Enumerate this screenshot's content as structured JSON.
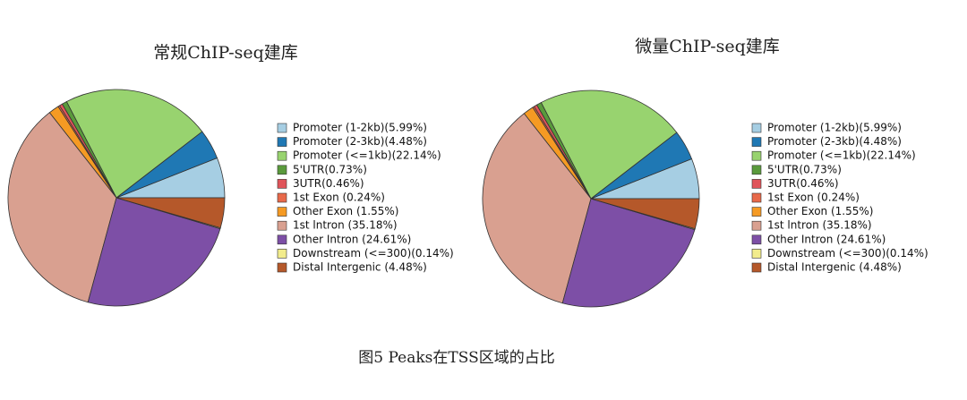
{
  "chart_data": [
    {
      "type": "pie",
      "title": "常规ChIP-seq建库",
      "categories": [
        "Promoter (1-2kb)(5.99%)",
        "Promoter (2-3kb)(4.48%)",
        "Promoter (<=1kb)(22.14%)",
        "5'UTR(0.73%)",
        "3UTR(0.46%)",
        "1st Exon (0.24%)",
        "Other Exon (1.55%)",
        "1st lntron (35.18%)",
        "Other Intron (24.61%)",
        "Downstream (<=300)(0.14%)",
        "Distal Intergenic (4.48%)"
      ],
      "values": [
        5.99,
        4.48,
        22.14,
        0.73,
        0.46,
        0.24,
        1.55,
        35.18,
        24.61,
        0.14,
        4.48
      ],
      "colors": [
        "#a6cee3",
        "#1f78b4",
        "#98d36f",
        "#5a9a3c",
        "#e0545a",
        "#e8694a",
        "#f59a23",
        "#d9a090",
        "#7d4fa6",
        "#f2ec8c",
        "#b5582a"
      ]
    },
    {
      "type": "pie",
      "title": "微量ChIP-seq建库",
      "categories": [
        "Promoter (1-2kb)(5.99%)",
        "Promoter (2-3kb)(4.48%)",
        "Promoter (<=1kb)(22.14%)",
        "5'UTR(0.73%)",
        "3UTR(0.46%)",
        "1st Exon (0.24%)",
        "Other Exon (1.55%)",
        "1st lntron (35.18%)",
        "Other Intron (24.61%)",
        "Downstream (<=300)(0.14%)",
        "Distal Intergenic (4.48%)"
      ],
      "values": [
        5.99,
        4.48,
        22.14,
        0.73,
        0.46,
        0.24,
        1.55,
        35.18,
        24.61,
        0.14,
        4.48
      ],
      "colors": [
        "#a6cee3",
        "#1f78b4",
        "#98d36f",
        "#5a9a3c",
        "#e0545a",
        "#e8694a",
        "#f59a23",
        "#d9a090",
        "#7d4fa6",
        "#f2ec8c",
        "#b5582a"
      ]
    }
  ],
  "figure_caption": "图5 Peaks在TSS区域的占比"
}
